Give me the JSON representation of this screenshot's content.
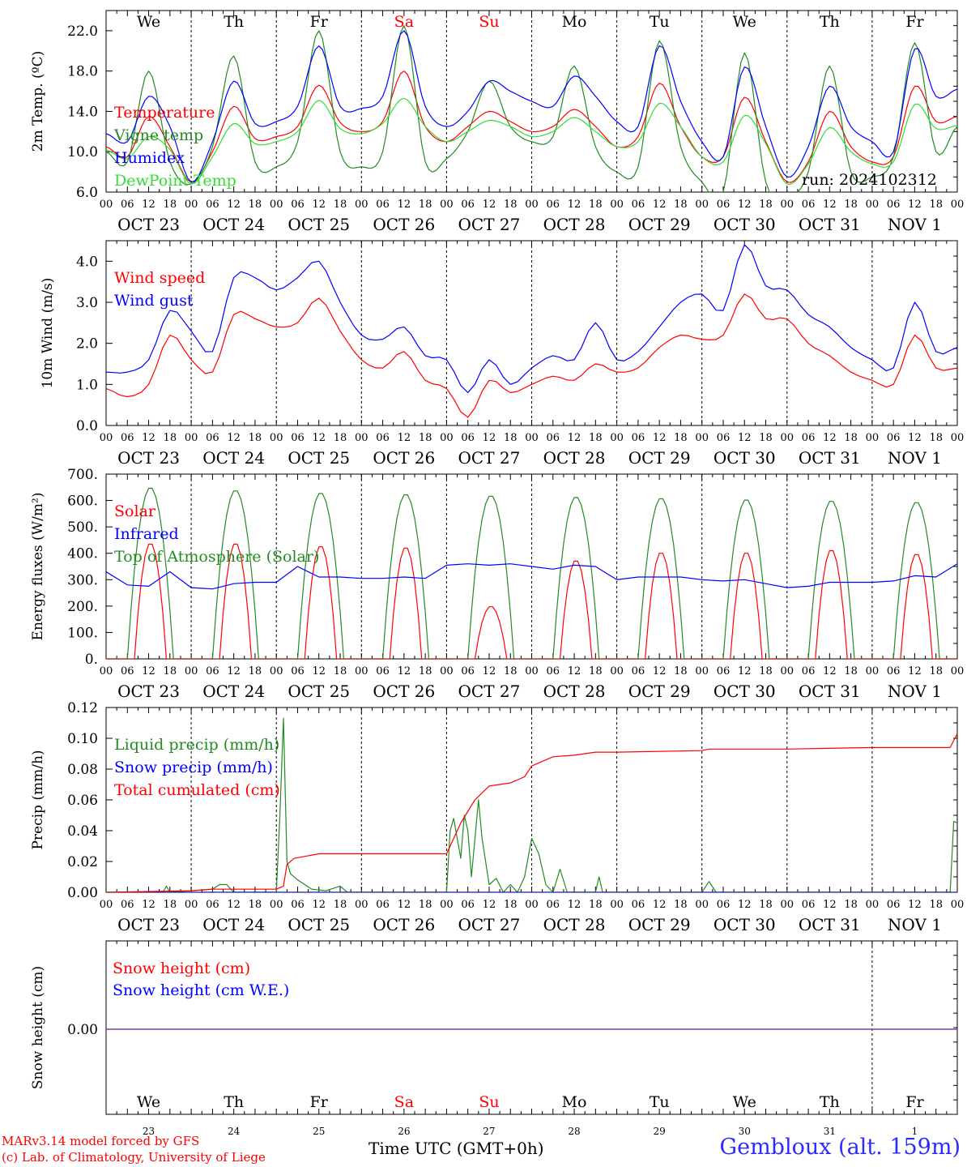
{
  "chart_data": [
    {
      "type": "line",
      "ylabel": "2m Temp. (ºC)",
      "ylim": [
        6,
        24
      ],
      "yticks": [
        "6.0",
        "10.0",
        "14.0",
        "18.0",
        "22.0"
      ],
      "legend": [
        "Temperature",
        "Vigne temp",
        "Humidex",
        "DewPoint Temp"
      ],
      "annotation": "run: 2024102312",
      "x_hours": [
        0,
        6,
        12,
        18,
        24,
        30,
        36,
        42,
        48,
        54,
        60,
        66,
        72,
        78,
        84,
        90,
        96,
        102,
        108,
        114,
        120,
        126,
        132,
        138,
        144,
        150,
        156,
        162,
        168,
        174,
        180,
        186,
        192,
        198,
        204,
        210,
        216,
        222,
        228,
        234,
        240
      ],
      "series": [
        {
          "name": "Temperature",
          "color": "#ff0000",
          "values": [
            10.5,
            9.5,
            13.5,
            10.5,
            7.0,
            10.0,
            14.5,
            11.3,
            11.5,
            12.5,
            16.6,
            12.9,
            12.0,
            13.0,
            18.0,
            12.5,
            11.0,
            12.5,
            14.0,
            13.0,
            12.0,
            12.5,
            14.2,
            12.5,
            10.5,
            11.5,
            16.8,
            12.5,
            9.5,
            9.5,
            15.4,
            11.0,
            7.0,
            9.0,
            14.0,
            10.5,
            9.0,
            9.5,
            16.5,
            13.0,
            13.5
          ]
        },
        {
          "name": "Vigne temp",
          "color": "#228b22",
          "values": [
            10.0,
            9.0,
            18.0,
            9.0,
            6.8,
            10.5,
            19.5,
            9.0,
            8.5,
            11.0,
            22.0,
            10.0,
            8.5,
            10.0,
            22.5,
            9.0,
            9.3,
            12.0,
            17.0,
            12.5,
            11.0,
            11.5,
            18.5,
            10.5,
            8.0,
            8.5,
            21.0,
            10.5,
            7.0,
            6.0,
            19.8,
            7.0,
            5.5,
            8.0,
            18.5,
            8.0,
            7.5,
            9.5,
            20.8,
            10.0,
            12.5
          ]
        },
        {
          "name": "Humidex",
          "color": "#0000ff",
          "values": [
            11.8,
            11.0,
            15.5,
            12.5,
            7.0,
            11.0,
            17.0,
            12.8,
            13.0,
            14.5,
            20.5,
            14.5,
            14.3,
            15.5,
            22.0,
            14.5,
            12.5,
            14.0,
            17.0,
            16.0,
            15.0,
            14.5,
            17.5,
            15.5,
            13.0,
            12.5,
            20.5,
            15.0,
            11.0,
            9.5,
            18.4,
            12.5,
            7.5,
            10.5,
            16.5,
            12.5,
            11.0,
            10.0,
            20.2,
            15.5,
            16.2
          ]
        },
        {
          "name": "DewPoint Temp",
          "color": "#33dd33",
          "values": [
            10.2,
            9.3,
            11.5,
            10.2,
            6.8,
            9.5,
            12.8,
            10.8,
            11.0,
            12.0,
            15.1,
            12.3,
            11.8,
            12.8,
            15.3,
            12.5,
            11.0,
            12.0,
            13.1,
            12.5,
            11.5,
            12.0,
            13.4,
            12.0,
            10.5,
            11.0,
            14.8,
            12.5,
            9.5,
            9.0,
            13.6,
            10.8,
            6.8,
            8.8,
            12.4,
            10.0,
            8.8,
            9.0,
            14.7,
            12.3,
            12.6
          ]
        }
      ]
    },
    {
      "type": "line",
      "ylabel": "10m Wind (m/s)",
      "ylim": [
        0,
        4.5
      ],
      "yticks": [
        "0.0",
        "1.0",
        "2.0",
        "3.0",
        "4.0"
      ],
      "legend": [
        "Wind speed",
        "Wind gust"
      ],
      "x_hours": [
        0,
        6,
        12,
        18,
        24,
        30,
        36,
        42,
        48,
        54,
        60,
        66,
        72,
        78,
        84,
        90,
        96,
        102,
        108,
        114,
        120,
        126,
        132,
        138,
        144,
        150,
        156,
        162,
        168,
        174,
        180,
        186,
        192,
        198,
        204,
        210,
        216,
        222,
        228,
        234,
        240
      ],
      "series": [
        {
          "name": "Wind speed",
          "color": "#ff0000",
          "values": [
            0.9,
            0.7,
            1.0,
            2.2,
            1.6,
            1.3,
            2.7,
            2.6,
            2.4,
            2.5,
            3.1,
            2.3,
            1.6,
            1.4,
            1.8,
            1.1,
            0.9,
            0.2,
            1.1,
            0.8,
            1.0,
            1.2,
            1.1,
            1.5,
            1.3,
            1.4,
            1.9,
            2.2,
            2.1,
            2.2,
            3.2,
            2.6,
            2.6,
            2.0,
            1.7,
            1.3,
            1.1,
            1.0,
            2.2,
            1.4,
            1.4
          ]
        },
        {
          "name": "Wind gust",
          "color": "#0000ff",
          "values": [
            1.3,
            1.3,
            1.6,
            2.8,
            2.3,
            1.8,
            3.6,
            3.6,
            3.3,
            3.6,
            4.0,
            3.0,
            2.2,
            2.1,
            2.4,
            1.7,
            1.6,
            0.8,
            1.6,
            1.0,
            1.4,
            1.7,
            1.6,
            2.5,
            1.6,
            1.8,
            2.4,
            3.0,
            3.2,
            2.8,
            4.4,
            3.4,
            3.3,
            2.7,
            2.4,
            1.9,
            1.6,
            1.4,
            3.0,
            1.8,
            1.9
          ]
        }
      ]
    },
    {
      "type": "line",
      "ylabel": "Energy fluxes (W/m²)",
      "ylim": [
        0,
        700
      ],
      "yticks": [
        "0.",
        "100.",
        "200.",
        "300.",
        "400.",
        "500.",
        "600.",
        "700."
      ],
      "legend": [
        "Solar",
        "Infrared",
        "Top of Atmosphere (Solar)"
      ],
      "toa_peaks": [
        650,
        640,
        630,
        625,
        620,
        615,
        610,
        605,
        600,
        595
      ],
      "solar_peaks": [
        440,
        440,
        430,
        425,
        200,
        375,
        405,
        405,
        415,
        400
      ],
      "infrared": [
        [
          0,
          330
        ],
        [
          6,
          280
        ],
        [
          12,
          275
        ],
        [
          18,
          330
        ],
        [
          24,
          270
        ],
        [
          30,
          265
        ],
        [
          36,
          285
        ],
        [
          42,
          290
        ],
        [
          48,
          290
        ],
        [
          54,
          350
        ],
        [
          60,
          310
        ],
        [
          66,
          310
        ],
        [
          72,
          305
        ],
        [
          78,
          305
        ],
        [
          84,
          310
        ],
        [
          90,
          305
        ],
        [
          96,
          355
        ],
        [
          102,
          360
        ],
        [
          108,
          355
        ],
        [
          114,
          360
        ],
        [
          120,
          350
        ],
        [
          126,
          340
        ],
        [
          132,
          355
        ],
        [
          138,
          350
        ],
        [
          144,
          300
        ],
        [
          150,
          310
        ],
        [
          156,
          310
        ],
        [
          162,
          310
        ],
        [
          168,
          300
        ],
        [
          174,
          295
        ],
        [
          180,
          300
        ],
        [
          186,
          285
        ],
        [
          192,
          270
        ],
        [
          198,
          275
        ],
        [
          204,
          290
        ],
        [
          210,
          290
        ],
        [
          216,
          290
        ],
        [
          222,
          295
        ],
        [
          228,
          315
        ],
        [
          234,
          310
        ],
        [
          240,
          360
        ]
      ]
    },
    {
      "type": "line",
      "ylabel": "Precip (mm/h)",
      "ylim": [
        0,
        0.12
      ],
      "yticks": [
        "0.00",
        "0.02",
        "0.04",
        "0.06",
        "0.08",
        "0.10",
        "0.12"
      ],
      "legend": [
        "Liquid precip (mm/h)",
        "Snow precip (mm/h)",
        "Total cumulated (cm)"
      ],
      "series": [
        {
          "name": "Liquid precip (mm/h)",
          "color": "#228b22",
          "points": [
            [
              0,
              0
            ],
            [
              16,
              0
            ],
            [
              17,
              0.004
            ],
            [
              18,
              0
            ],
            [
              30,
              0.002
            ],
            [
              32,
              0.005
            ],
            [
              34,
              0.005
            ],
            [
              36,
              0
            ],
            [
              48,
              0
            ],
            [
              49,
              0.05
            ],
            [
              50,
              0.113
            ],
            [
              51,
              0.02
            ],
            [
              52,
              0.012
            ],
            [
              54,
              0.008
            ],
            [
              58,
              0.002
            ],
            [
              62,
              0.001
            ],
            [
              66,
              0.004
            ],
            [
              68,
              0
            ],
            [
              96,
              0
            ],
            [
              97,
              0.04
            ],
            [
              98,
              0.048
            ],
            [
              100,
              0.022
            ],
            [
              101,
              0.05
            ],
            [
              102,
              0.04
            ],
            [
              103,
              0.01
            ],
            [
              105,
              0.06
            ],
            [
              106,
              0.035
            ],
            [
              108,
              0.005
            ],
            [
              110,
              0.009
            ],
            [
              112,
              0
            ],
            [
              114,
              0.005
            ],
            [
              116,
              0
            ],
            [
              118,
              0.01
            ],
            [
              120,
              0.035
            ],
            [
              122,
              0.025
            ],
            [
              124,
              0.005
            ],
            [
              126,
              0
            ],
            [
              128,
              0.015
            ],
            [
              130,
              0
            ],
            [
              138,
              0
            ],
            [
              139,
              0.01
            ],
            [
              140,
              0
            ],
            [
              144,
              0
            ],
            [
              168,
              0
            ],
            [
              170,
              0.007
            ],
            [
              172,
              0
            ],
            [
              238,
              0
            ],
            [
              239,
              0.046
            ],
            [
              240,
              0.045
            ]
          ]
        },
        {
          "name": "Snow precip (mm/h)",
          "color": "#0000ff",
          "points": [
            [
              0,
              0
            ],
            [
              240,
              0
            ]
          ]
        },
        {
          "name": "Total cumulated (cm)",
          "color": "#ff0000",
          "points": [
            [
              0,
              0
            ],
            [
              24,
              0.001
            ],
            [
              30,
              0.002
            ],
            [
              48,
              0.002
            ],
            [
              50,
              0.004
            ],
            [
              51,
              0.018
            ],
            [
              53,
              0.022
            ],
            [
              60,
              0.025
            ],
            [
              96,
              0.025
            ],
            [
              98,
              0.035
            ],
            [
              100,
              0.045
            ],
            [
              104,
              0.06
            ],
            [
              108,
              0.069
            ],
            [
              114,
              0.071
            ],
            [
              118,
              0.075
            ],
            [
              120,
              0.082
            ],
            [
              126,
              0.088
            ],
            [
              132,
              0.089
            ],
            [
              138,
              0.091
            ],
            [
              144,
              0.091
            ],
            [
              168,
              0.092
            ],
            [
              170,
              0.093
            ],
            [
              192,
              0.093
            ],
            [
              216,
              0.094
            ],
            [
              238,
              0.094
            ],
            [
              240,
              0.103
            ]
          ]
        }
      ]
    },
    {
      "type": "line",
      "ylabel": "Snow height (cm)",
      "yticks": [
        "0.00"
      ],
      "legend": [
        "Snow height (cm)",
        "Snow height (cm W.E.)"
      ],
      "series": [
        {
          "name": "Snow height (cm)",
          "color": "#ff0000",
          "points": [
            [
              0,
              0
            ],
            [
              240,
              0
            ]
          ]
        },
        {
          "name": "Snow height (cm W.E.)",
          "color": "#0000ff",
          "points": [
            [
              0,
              0
            ],
            [
              240,
              0
            ]
          ]
        }
      ]
    }
  ],
  "axis": {
    "hour_ticks": [
      "00",
      "06",
      "12",
      "18"
    ],
    "end_tick": "00",
    "date_labels": [
      "OCT 23",
      "OCT 24",
      "OCT 25",
      "OCT 26",
      "OCT 27",
      "OCT 28",
      "OCT 29",
      "OCT 30",
      "OCT 31",
      "NOV  1"
    ],
    "weekdays": [
      "We",
      "Th",
      "Fr",
      "Sa",
      "Su",
      "Mo",
      "Tu",
      "We",
      "Th",
      "Fr"
    ],
    "weekend_days": [
      "Sa",
      "Su"
    ],
    "day_numbers": [
      "23",
      "24",
      "25",
      "26",
      "27",
      "28",
      "29",
      "30",
      "31",
      "1"
    ]
  },
  "colors": {
    "weekday": "#000000",
    "weekend": "#ff0000",
    "frame": "#000000",
    "snow_zero": "#7f3f9f"
  },
  "footer": {
    "credit_line1": "MARv3.14 model forced by GFS",
    "credit_line2": "(c) Lab. of Climatology, University of Liege",
    "time_label": "Time UTC (GMT+0h)",
    "station": "Gembloux (alt. 159m)"
  }
}
